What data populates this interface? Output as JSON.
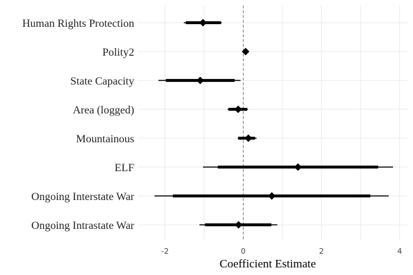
{
  "chart_data": {
    "type": "coefficient_plot",
    "xlabel": "Coefficient Estimate",
    "xlim": [
      -2.7,
      4.2
    ],
    "xticks": [
      -2,
      0,
      2,
      4
    ],
    "reference_line": 0,
    "grid": true,
    "colors": {
      "mark": "#000000",
      "grid": "#ebebeb",
      "reference": "#7f7f7f"
    },
    "terms": [
      {
        "label": "Human Rights Protection",
        "estimate": -1.03,
        "ci_inner": [
          -1.47,
          -0.57
        ],
        "ci_outer": [
          -1.52,
          -0.55
        ]
      },
      {
        "label": "Polity2",
        "estimate": 0.06,
        "ci_inner": [
          0.03,
          0.09
        ],
        "ci_outer": [
          0.02,
          0.1
        ]
      },
      {
        "label": "State Capacity",
        "estimate": -1.1,
        "ci_inner": [
          -1.98,
          -0.22
        ],
        "ci_outer": [
          -2.17,
          -0.07
        ]
      },
      {
        "label": "Area (logged)",
        "estimate": -0.13,
        "ci_inner": [
          -0.38,
          0.1
        ],
        "ci_outer": [
          -0.4,
          0.12
        ]
      },
      {
        "label": "Mountainous",
        "estimate": 0.13,
        "ci_inner": [
          -0.13,
          0.3
        ],
        "ci_outer": [
          -0.14,
          0.34
        ]
      },
      {
        "label": "ELF",
        "estimate": 1.4,
        "ci_inner": [
          -0.65,
          3.45
        ],
        "ci_outer": [
          -1.03,
          3.83
        ]
      },
      {
        "label": "Ongoing Interstate War",
        "estimate": 0.73,
        "ci_inner": [
          -1.8,
          3.25
        ],
        "ci_outer": [
          -2.27,
          3.72
        ]
      },
      {
        "label": "Ongoing Intrastate War",
        "estimate": -0.12,
        "ci_inner": [
          -0.98,
          0.72
        ],
        "ci_outer": [
          -1.12,
          0.87
        ]
      }
    ]
  }
}
